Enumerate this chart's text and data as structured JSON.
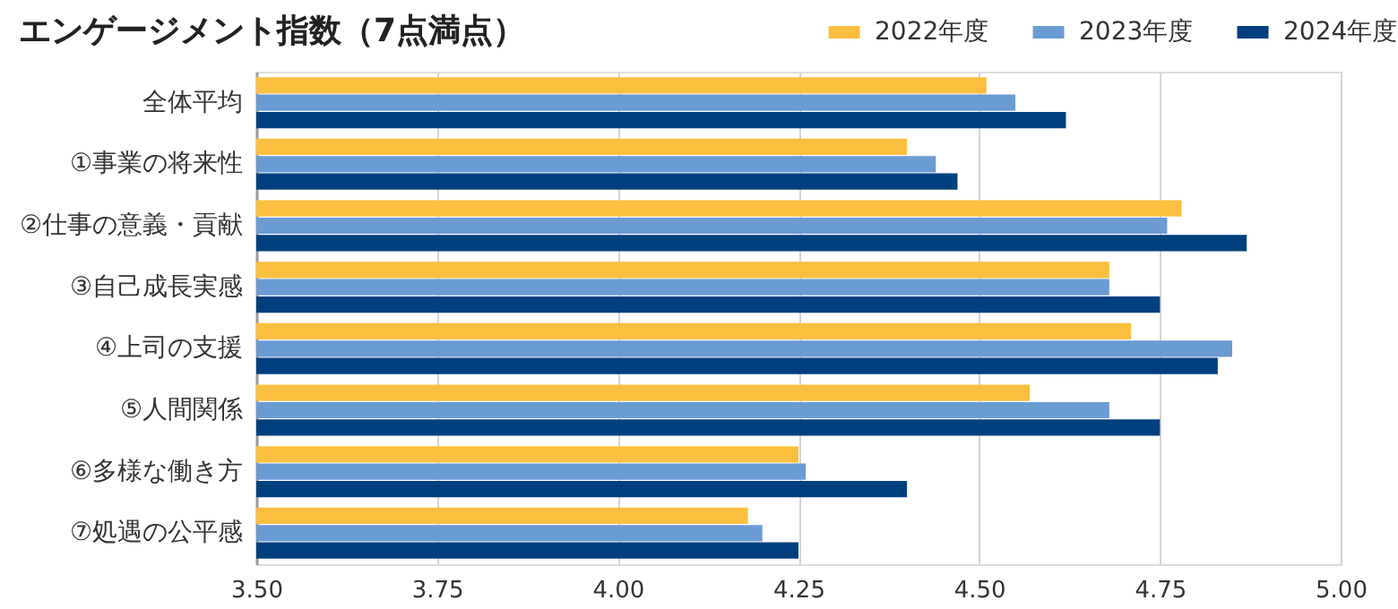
{
  "chart_data": {
    "type": "bar",
    "orientation": "horizontal",
    "title": "エンゲージメント指数（7点満点）",
    "categories": [
      "全体平均",
      "①事業の将来性",
      "②仕事の意義・貢献",
      "③自己成長実感",
      "④上司の支援",
      "⑤人間関係",
      "⑥多様な働き方",
      "⑦処遇の公平感"
    ],
    "series": [
      {
        "name": "2022年度",
        "color": "#fbbf3f",
        "values": [
          4.51,
          4.4,
          4.78,
          4.68,
          4.71,
          4.57,
          4.25,
          4.18
        ]
      },
      {
        "name": "2023年度",
        "color": "#6b9bd3",
        "values": [
          4.55,
          4.44,
          4.76,
          4.68,
          4.85,
          4.68,
          4.26,
          4.2
        ]
      },
      {
        "name": "2024年度",
        "color": "#00407f",
        "values": [
          4.62,
          4.47,
          4.87,
          4.75,
          4.83,
          4.75,
          4.4,
          4.25
        ]
      }
    ],
    "xlim": [
      3.5,
      5.0
    ],
    "xticks": [
      {
        "value": 3.5,
        "label": "3.50"
      },
      {
        "value": 3.75,
        "label": "3.75"
      },
      {
        "value": 4.0,
        "label": "4.00"
      },
      {
        "value": 4.25,
        "label": "4.25"
      },
      {
        "value": 4.5,
        "label": "4.50"
      },
      {
        "value": 4.75,
        "label": "4.75"
      },
      {
        "value": 5.0,
        "label": "5.00"
      }
    ],
    "grid": "x",
    "legend": "top right"
  }
}
